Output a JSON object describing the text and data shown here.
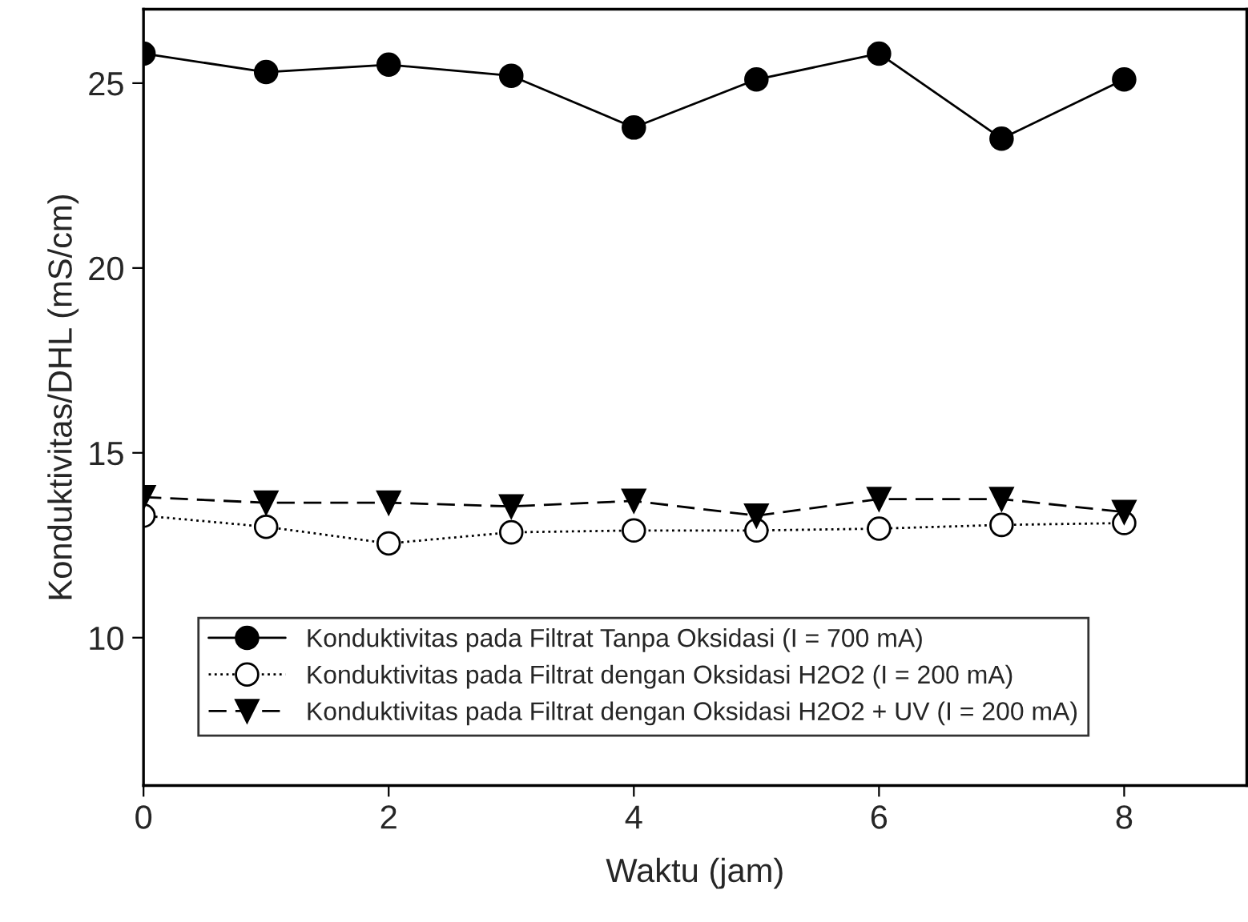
{
  "chart_data": {
    "type": "line",
    "xlabel": "Waktu (jam)",
    "ylabel": "Konduktivitas/DHL (mS/cm)",
    "x": [
      0,
      1,
      2,
      3,
      4,
      5,
      6,
      7,
      8
    ],
    "xlim": [
      0,
      9
    ],
    "xticks": [
      0,
      2,
      4,
      6,
      8
    ],
    "ylim": [
      6,
      27
    ],
    "yticks": [
      10,
      15,
      20,
      25
    ],
    "grid": false,
    "legend": "bottom left",
    "series": [
      {
        "name": "Konduktivitas pada Filtrat Tanpa Oksidasi (I = 700 mA)",
        "color": "#000000",
        "marker": "circle",
        "line_style": "solid",
        "values": [
          25.8,
          25.3,
          25.5,
          25.2,
          23.8,
          25.1,
          25.8,
          23.5,
          25.1
        ]
      },
      {
        "name": "Konduktivitas pada Filtrat dengan Oksidasi H2O2 (I = 200 mA)",
        "color": "#000000",
        "marker": "circle",
        "line_style": "dotted",
        "values": [
          13.3,
          13.0,
          12.55,
          12.85,
          12.9,
          12.9,
          12.95,
          13.05,
          13.1
        ]
      },
      {
        "name": "Konduktivitas pada Filtrat dengan Oksidasi H2O2 + UV (I = 200 mA)",
        "color": "#000000",
        "marker": "triangle",
        "line_style": "dashed",
        "values": [
          13.8,
          13.65,
          13.65,
          13.55,
          13.7,
          13.3,
          13.75,
          13.75,
          13.4
        ]
      }
    ]
  }
}
